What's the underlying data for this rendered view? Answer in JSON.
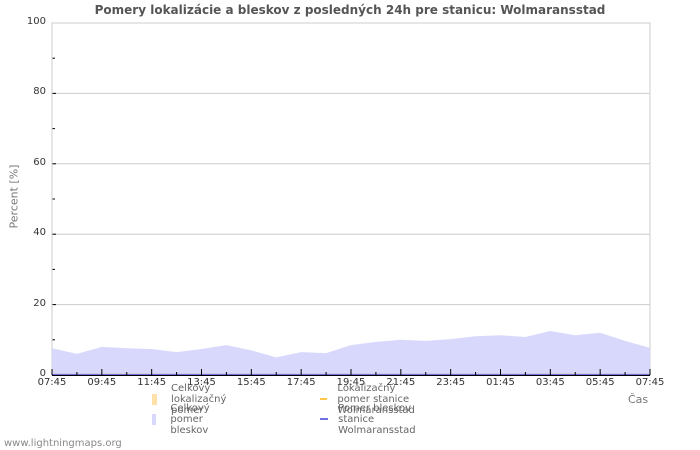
{
  "title": "Pomery lokalizácie a bleskov z posledných 24h pre stanicu: Wolmaransstad",
  "footer": "www.lightningmaps.org",
  "colors": {
    "total_lightning_fill": "#d8d8fd",
    "total_location_fill": "#ffe0a8",
    "station_location_line": "#ffc64c",
    "station_lightning_line": "#7070e0",
    "grid": "#cccccc"
  },
  "chart_data": {
    "type": "area",
    "title": "Pomery lokalizácie a bleskov z posledných 24h pre stanicu: Wolmaransstad",
    "xlabel": "Čas",
    "ylabel": "Percent   [%]",
    "ylim": [
      0,
      100
    ],
    "yticks": [
      0,
      20,
      40,
      60,
      80,
      100
    ],
    "xtick_labels": [
      "07:45",
      "09:45",
      "11:45",
      "13:45",
      "15:45",
      "17:45",
      "19:45",
      "21:45",
      "23:45",
      "01:45",
      "03:45",
      "05:45",
      "07:45"
    ],
    "grid": true,
    "legend_position": "bottom",
    "x": [
      "07:45",
      "08:45",
      "09:45",
      "10:45",
      "11:45",
      "12:45",
      "13:45",
      "14:45",
      "15:45",
      "16:45",
      "17:45",
      "18:45",
      "19:45",
      "20:45",
      "21:45",
      "22:45",
      "23:45",
      "00:45",
      "01:45",
      "02:45",
      "03:45",
      "04:45",
      "05:45",
      "06:45",
      "07:45"
    ],
    "series": [
      {
        "name": "Celkový lokalizačný pomer",
        "style": "area",
        "values": [
          0.3,
          0.3,
          0.4,
          0.4,
          0.4,
          0.3,
          0.4,
          0.3,
          0.2,
          0.1,
          0.2,
          0.2,
          0.2,
          0.2,
          0.3,
          0.2,
          0.2,
          0.2,
          0.3,
          0.3,
          0.4,
          0.4,
          0.3,
          0.2,
          0.2
        ]
      },
      {
        "name": "Celkový pomer bleskov",
        "style": "area",
        "values": [
          7.6,
          6.0,
          8.0,
          7.6,
          7.4,
          6.5,
          7.4,
          8.5,
          7.0,
          5.0,
          6.5,
          6.2,
          8.5,
          9.4,
          10.0,
          9.7,
          10.2,
          11.0,
          11.3,
          10.8,
          12.5,
          11.3,
          12.0,
          9.7,
          7.7
        ]
      },
      {
        "name": "Lokalizačný pomer stanice Wolmaransstad",
        "style": "line",
        "values": [
          0,
          0,
          0,
          0,
          0,
          0,
          0,
          0,
          0,
          0,
          0,
          0,
          0,
          0,
          0,
          0,
          0,
          0,
          0,
          0,
          0,
          0,
          0,
          0,
          0
        ]
      },
      {
        "name": "Pomer bleskov stanice Wolmaransstad",
        "style": "line",
        "values": [
          0,
          0,
          0,
          0,
          0,
          0,
          0,
          0,
          0,
          0,
          0,
          0,
          0,
          0,
          0,
          0,
          0,
          0,
          0,
          0,
          0,
          0,
          0,
          0,
          0
        ]
      }
    ]
  },
  "legend": [
    {
      "label": "Celkový lokalizačný pomer",
      "kind": "swatch",
      "color": "#ffe0a8"
    },
    {
      "label": "Lokalizačný pomer stanice Wolmaransstad",
      "kind": "line",
      "color": "#ffc64c"
    },
    {
      "label": "Celkový pomer bleskov",
      "kind": "swatch",
      "color": "#d8d8fd"
    },
    {
      "label": "Pomer bleskov stanice Wolmaransstad",
      "kind": "line",
      "color": "#7070e0"
    }
  ]
}
